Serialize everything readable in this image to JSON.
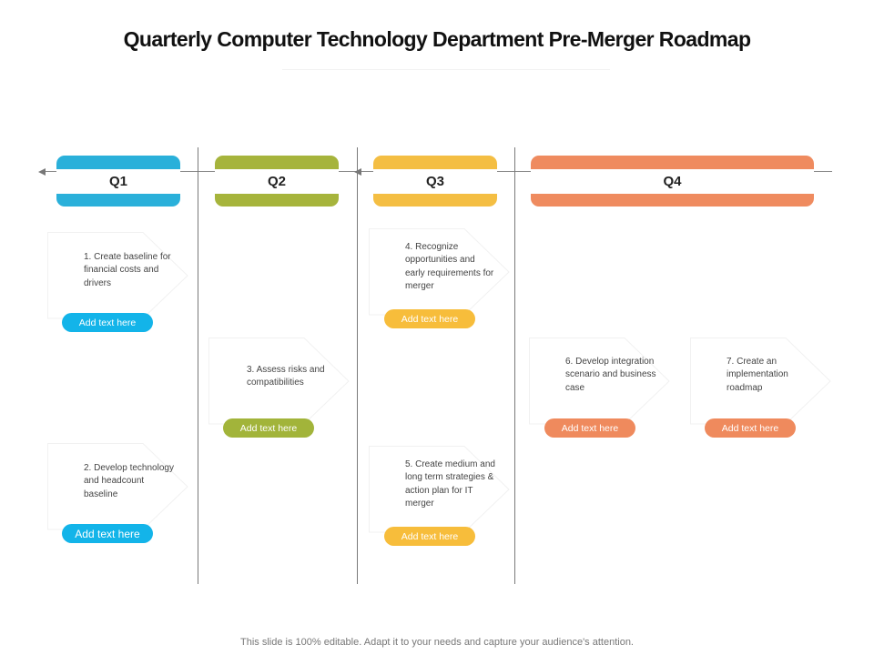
{
  "title": "Quarterly Computer Technology Department Pre-Merger Roadmap",
  "footer": "This slide is 100% editable. Adapt it to your needs and capture your audience's attention.",
  "colors": {
    "q1": "#2ab0da",
    "q2": "#a6b43c",
    "q3": "#f4be43",
    "q4": "#ef8b5f",
    "pill_q1": "#13b4e9",
    "pill_q2": "#a2b43a",
    "pill_q3": "#f7bd3b",
    "pill_q4": "#ef8a5d"
  },
  "quarters": [
    {
      "label": "Q1"
    },
    {
      "label": "Q2"
    },
    {
      "label": "Q3"
    },
    {
      "label": "Q4"
    }
  ],
  "cards": [
    {
      "text": "1. Create baseline for financial costs and drivers",
      "button": "Add text here"
    },
    {
      "text": "2. Develop technology and headcount baseline",
      "button": "Add text here"
    },
    {
      "text": "3. Assess risks and compatibilities",
      "button": "Add text here"
    },
    {
      "text": "4. Recognize opportunities and early requirements for merger",
      "button": "Add text here"
    },
    {
      "text": "5. Create medium and long term strategies & action plan for IT merger",
      "button": "Add text here"
    },
    {
      "text": "6. Develop integration scenario and business case",
      "button": "Add text here"
    },
    {
      "text": "7. Create an implementation roadmap",
      "button": "Add text here"
    }
  ]
}
